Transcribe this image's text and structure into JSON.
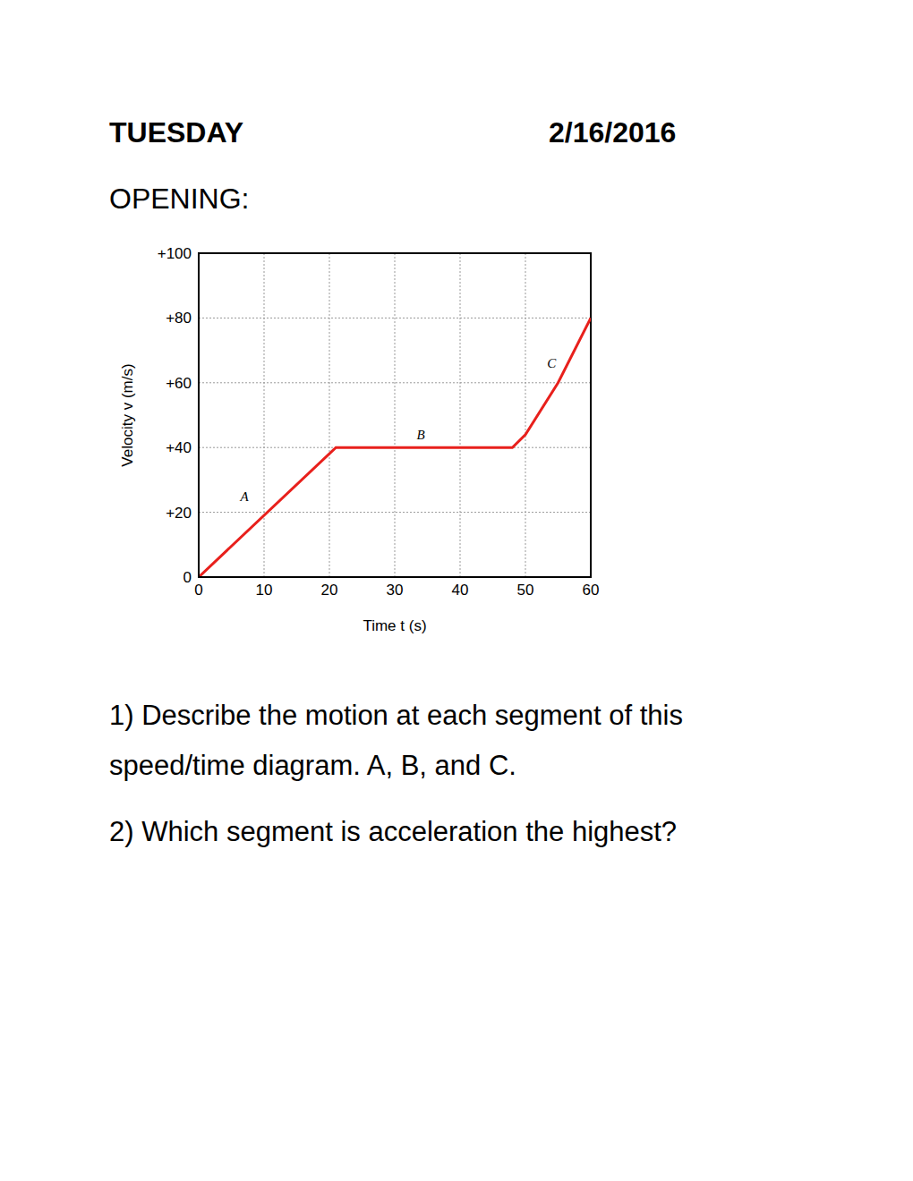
{
  "header": {
    "day": "TUESDAY",
    "date": "2/16/2016"
  },
  "opening": "OPENING:",
  "chart_data": {
    "type": "line",
    "x_label": "Time t (s)",
    "y_label": "Velocity v (m/s)",
    "x": [
      0,
      21,
      48,
      50,
      55,
      60
    ],
    "values": [
      0,
      40,
      40,
      44,
      60,
      80
    ],
    "color": "#e8201c",
    "xlim": [
      0,
      60
    ],
    "xticks": [
      0,
      10,
      20,
      30,
      40,
      50,
      60
    ],
    "ylim": [
      0,
      100
    ],
    "yticks": [
      0,
      {
        "value": 20,
        "label": "+20"
      },
      {
        "value": 40,
        "label": "+40"
      },
      {
        "value": 60,
        "label": "+60"
      },
      {
        "value": 80,
        "label": "+80"
      },
      {
        "value": 100,
        "label": "+100"
      }
    ],
    "grid": true,
    "annotations": [
      {
        "text": "A",
        "x": 7,
        "y": 25
      },
      {
        "text": "B",
        "x": 34,
        "y": 44
      },
      {
        "text": "C",
        "x": 54,
        "y": 66
      }
    ]
  },
  "questions": [
    "1) Describe the motion at each segment of this speed/time diagram. A, B, and C.",
    "2) Which segment is acceleration the highest?"
  ]
}
